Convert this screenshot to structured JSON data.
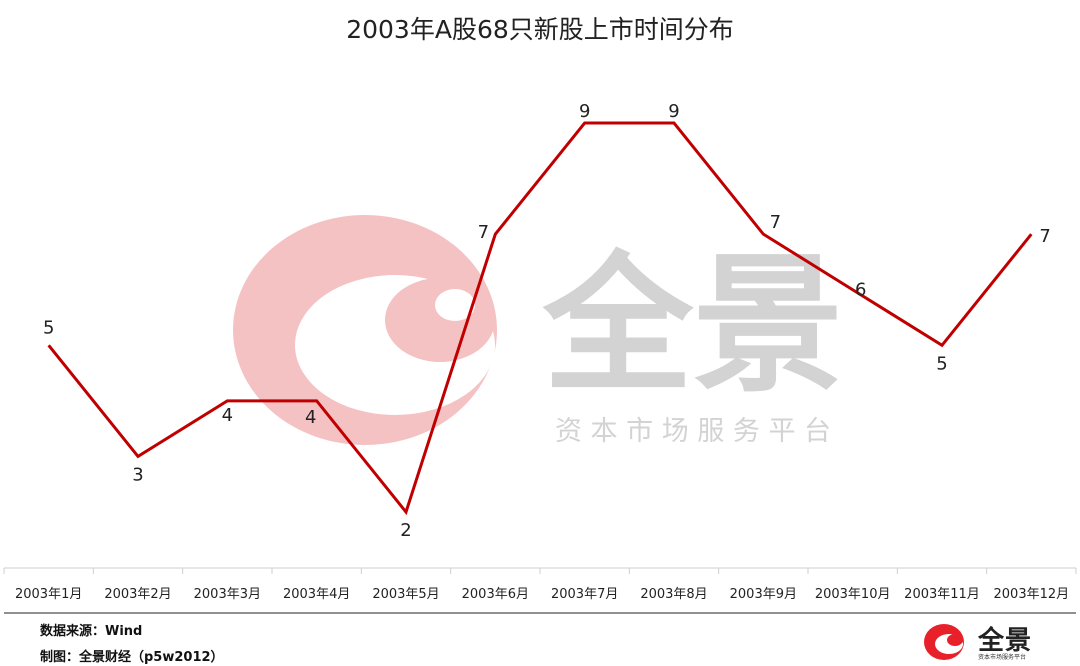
{
  "chart_data": {
    "type": "line",
    "title": "2003年A股68只新股上市时间分布",
    "categories": [
      "2003年1月",
      "2003年2月",
      "2003年3月",
      "2003年4月",
      "2003年5月",
      "2003年6月",
      "2003年7月",
      "2003年8月",
      "2003年9月",
      "2003年10月",
      "2003年11月",
      "2003年12月"
    ],
    "series": [
      {
        "values": [
          5,
          3,
          4,
          4,
          2,
          7,
          9,
          9,
          7,
          6,
          5,
          7
        ],
        "color": "#c00000"
      }
    ],
    "ylim": [
      2,
      9
    ],
    "grid": false,
    "data_labels": true
  },
  "watermark": {
    "name": "全景",
    "slogan": "资 本 市 场 服 务 平 台"
  },
  "footer": {
    "source": "数据来源：Wind",
    "maker": "制图：全景财经（p5w2012）"
  },
  "brand": {
    "name": "全景",
    "slogan": "资本市场服务平台"
  },
  "colors": {
    "line": "#c00000",
    "logo_red": "#e8202a",
    "watermark_pink": "#f5c2c4",
    "watermark_gray": "#d3d3d3"
  }
}
